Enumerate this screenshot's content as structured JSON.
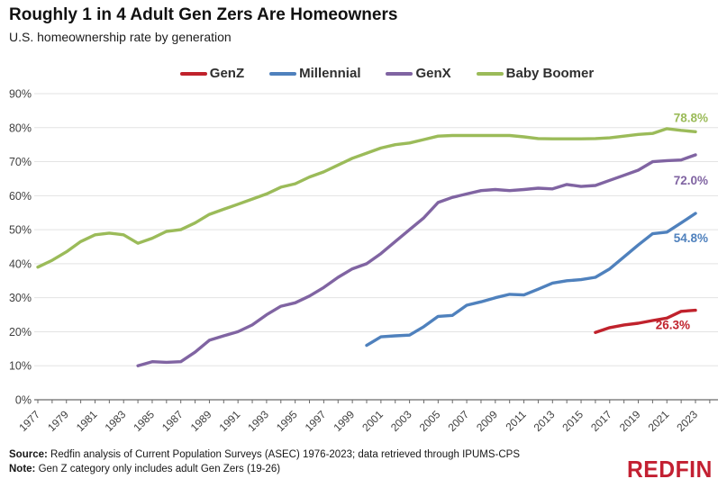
{
  "chart_data": {
    "type": "line",
    "title": "Roughly 1 in 4 Adult Gen Zers Are Homeowners",
    "subtitle": "U.S. homeownership rate by generation",
    "xlabel": "",
    "ylabel": "",
    "ylim": [
      0,
      90
    ],
    "ytick_step": 10,
    "yticks": [
      "0%",
      "10%",
      "20%",
      "30%",
      "40%",
      "50%",
      "60%",
      "70%",
      "80%",
      "90%"
    ],
    "xlim": [
      1977,
      2023
    ],
    "xticks": [
      1977,
      1979,
      1981,
      1983,
      1985,
      1987,
      1989,
      1991,
      1993,
      1995,
      1997,
      1999,
      2001,
      2003,
      2005,
      2007,
      2009,
      2011,
      2013,
      2015,
      2017,
      2019,
      2021,
      2023
    ],
    "grid": "horizontal",
    "legend_position": "top",
    "colors": {
      "grid": "#e3e3e3",
      "axis": "#6a6a6a"
    },
    "series": [
      {
        "name": "GenZ",
        "color": "#c0222c",
        "start_year": 2016,
        "end_label": "26.3%",
        "values": [
          19.8,
          21.2,
          22,
          22.5,
          23.3,
          24,
          26,
          26.3
        ]
      },
      {
        "name": "Millennial",
        "color": "#4f81bd",
        "start_year": 2000,
        "end_label": "54.8%",
        "values": [
          16,
          18.5,
          18.8,
          19,
          21.5,
          24.5,
          24.8,
          27.8,
          28.8,
          30,
          31,
          30.8,
          32.5,
          34.3,
          35,
          35.3,
          36,
          38.5,
          42,
          45.5,
          48.8,
          49.3,
          52,
          54.8
        ]
      },
      {
        "name": "GenX",
        "color": "#8064a2",
        "start_year": 1984,
        "end_label": "72.0%",
        "values": [
          10,
          11.2,
          11,
          11.2,
          14,
          17.5,
          18.8,
          20,
          22,
          25,
          27.5,
          28.5,
          30.5,
          33,
          36,
          38.5,
          40,
          43,
          46.5,
          50,
          53.5,
          58,
          59.5,
          60.5,
          61.5,
          61.8,
          61.5,
          61.8,
          62.2,
          62,
          63.3,
          62.7,
          63,
          64.5,
          66,
          67.5,
          70,
          70.3,
          70.5,
          72
        ]
      },
      {
        "name": "Baby Boomer",
        "color": "#9bbb59",
        "start_year": 1977,
        "end_label": "78.8%",
        "values": [
          39,
          41,
          43.5,
          46.5,
          48.5,
          49,
          48.5,
          46,
          47.5,
          49.5,
          50,
          52,
          54.5,
          56,
          57.5,
          59,
          60.5,
          62.5,
          63.5,
          65.5,
          67,
          69,
          71,
          72.5,
          74,
          75,
          75.5,
          76.5,
          77.5,
          77.7,
          77.7,
          77.7,
          77.7,
          77.7,
          77.3,
          76.8,
          76.7,
          76.7,
          76.7,
          76.8,
          77,
          77.5,
          78,
          78.3,
          79.7,
          79.2,
          78.8
        ]
      }
    ]
  },
  "footer": {
    "source_label": "Source:",
    "source_text": "Redfin analysis of Current Population Surveys (ASEC) 1976-2023; data retrieved through IPUMS-CPS",
    "note_label": "Note:",
    "note_text": "Gen Z category only includes adult Gen Zers (19-26)"
  },
  "branding": {
    "logo_text": "REDFIN",
    "logo_color": "#c32032"
  }
}
